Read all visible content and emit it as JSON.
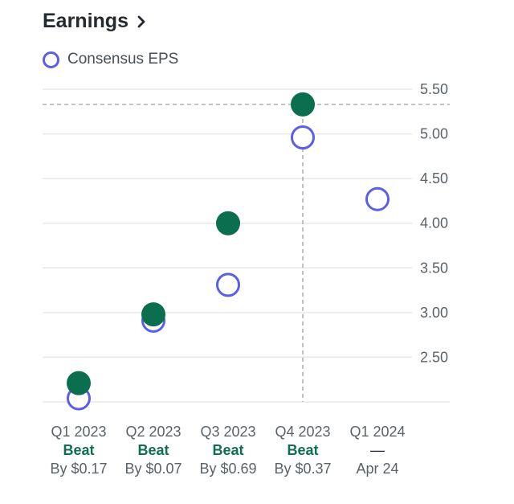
{
  "header": {
    "title": "Earnings",
    "chevron_icon": "chevron-right-icon"
  },
  "colors": {
    "estimate": "#5b5fe8",
    "actual": "#0b6e4f",
    "beat_text": "#0f6f4e",
    "grid": "#e6e8ec",
    "guide": "#9aa0a6"
  },
  "chart_data": {
    "type": "scatter",
    "title": "",
    "legend": [
      {
        "name": "Consensus EPS",
        "marker": "hollow-circle"
      }
    ],
    "legend_placement": "top-left",
    "categories": [
      "Q1 2023",
      "Q2 2023",
      "Q3 2023",
      "Q4 2023",
      "Q1 2024"
    ],
    "series": [
      {
        "name": "Consensus EPS",
        "values": [
          2.04,
          2.91,
          3.31,
          4.96,
          4.27
        ]
      },
      {
        "values": [
          2.21,
          2.98,
          4.0,
          5.33,
          null
        ]
      }
    ],
    "status": [
      "Beat",
      "Beat",
      "Beat",
      "Beat",
      "—"
    ],
    "detail": [
      "By $0.17",
      "By $0.07",
      "By $0.69",
      "By $0.37",
      "Apr 24"
    ],
    "yticks": [
      "2.50",
      "3.00",
      "3.50",
      "4.00",
      "4.50",
      "5.00",
      "5.50"
    ],
    "ytick_values": [
      2.5,
      3.0,
      3.5,
      4.0,
      4.5,
      5.0,
      5.5
    ],
    "ylim": [
      2.0,
      5.5
    ],
    "grid": true,
    "y_axis_side": "right",
    "highlight": {
      "category": "Q4 2023",
      "value": 5.33
    }
  }
}
